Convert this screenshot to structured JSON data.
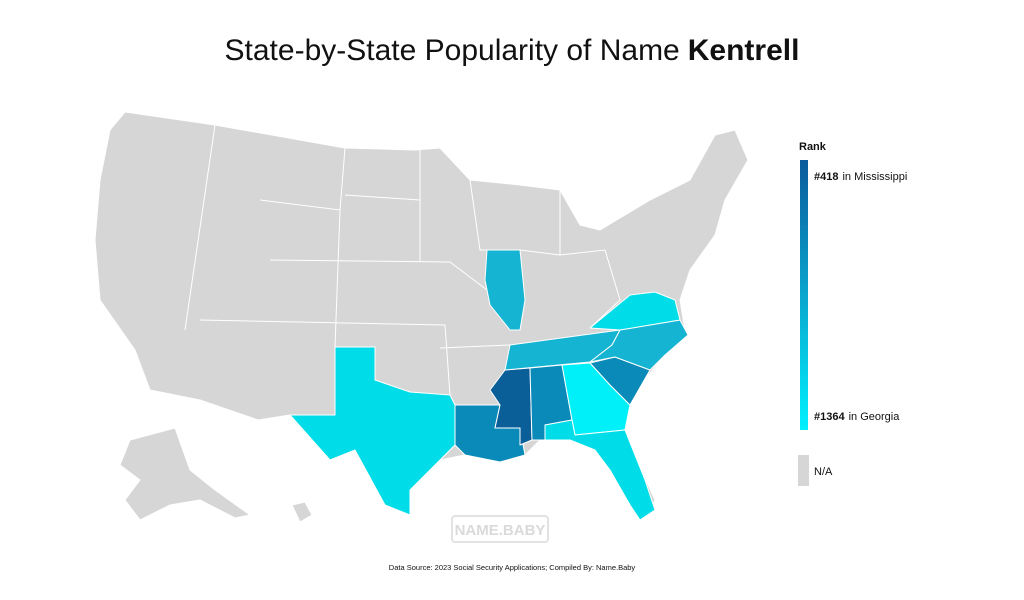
{
  "header": {
    "title": "State-by-State Popularity of Name",
    "name": "Kentrell"
  },
  "legend": {
    "title": "Rank",
    "top": {
      "rank": "#418",
      "label": "in Mississippi"
    },
    "bottom": {
      "rank": "#1364",
      "label": "in Georgia"
    },
    "na": "N/A"
  },
  "watermark": "NAME.BABY",
  "source": "Data Source: 2023 Social Security Applications; Compiled By: Name.Baby"
}
